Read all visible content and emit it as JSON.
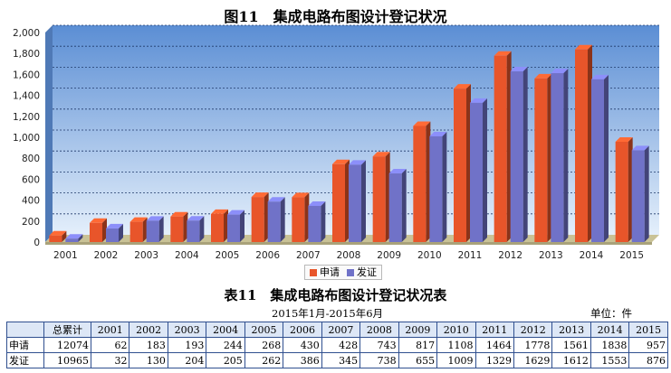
{
  "chart_title": "图11　集成电路布图设计登记状况",
  "table_title": "表11　集成电路布图设计登记状况表",
  "period": "2015年1月-2015年6月",
  "unit": "单位：件",
  "colors": {
    "apply": "#e8552a",
    "grant": "#7072c8",
    "plot_bg": "#5e8fd2",
    "floor": "#c9c296"
  },
  "chart_data": {
    "type": "bar",
    "categories": [
      "2001",
      "2002",
      "2003",
      "2004",
      "2005",
      "2006",
      "2007",
      "2008",
      "2009",
      "2010",
      "2011",
      "2012",
      "2013",
      "2014",
      "2015"
    ],
    "series": [
      {
        "name": "申请",
        "values": [
          62,
          183,
          193,
          244,
          268,
          430,
          428,
          743,
          817,
          1108,
          1464,
          1778,
          1561,
          1838,
          957
        ]
      },
      {
        "name": "发证",
        "values": [
          32,
          130,
          204,
          205,
          262,
          386,
          345,
          738,
          655,
          1009,
          1329,
          1629,
          1612,
          1553,
          876
        ]
      }
    ],
    "ylim": [
      0,
      2000
    ],
    "yticks": [
      "0",
      "200",
      "400",
      "600",
      "800",
      "1,000",
      "1,200",
      "1,400",
      "1,600",
      "1,800",
      "2,000"
    ],
    "grid": true,
    "legend": "bottom-center"
  },
  "table": {
    "header": [
      "",
      "总累计",
      "2001",
      "2002",
      "2003",
      "2004",
      "2005",
      "2006",
      "2007",
      "2008",
      "2009",
      "2010",
      "2011",
      "2012",
      "2013",
      "2014",
      "2015"
    ],
    "rows": [
      [
        "申请",
        "12074",
        "62",
        "183",
        "193",
        "244",
        "268",
        "430",
        "428",
        "743",
        "817",
        "1108",
        "1464",
        "1778",
        "1561",
        "1838",
        "957"
      ],
      [
        "发证",
        "10965",
        "32",
        "130",
        "204",
        "205",
        "262",
        "386",
        "345",
        "738",
        "655",
        "1009",
        "1329",
        "1629",
        "1612",
        "1553",
        "876"
      ]
    ]
  }
}
